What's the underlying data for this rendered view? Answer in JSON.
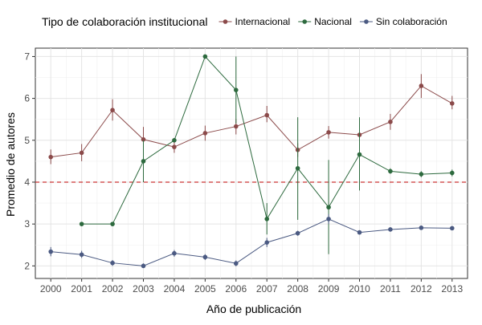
{
  "chart_data": {
    "type": "line",
    "legend_title": "Tipo de colaboración institucional",
    "legend_position": "top",
    "xlabel": "Año de publicación",
    "ylabel": "Promedio de autores",
    "x": [
      2000,
      2001,
      2002,
      2003,
      2004,
      2005,
      2006,
      2007,
      2008,
      2009,
      2010,
      2011,
      2012,
      2013
    ],
    "ylim": [
      1.7,
      7.2
    ],
    "yticks": [
      2,
      3,
      4,
      5,
      6,
      7
    ],
    "grid": true,
    "reference_line": {
      "y": 4,
      "color": "#cc3333",
      "style": "dashed"
    },
    "series": [
      {
        "name": "Internacional",
        "color": "#8b4a4a",
        "values": [
          4.6,
          4.7,
          5.72,
          5.02,
          4.84,
          5.17,
          5.33,
          5.6,
          4.77,
          5.19,
          5.13,
          5.44,
          6.3,
          5.88
        ],
        "err_low": [
          4.43,
          4.5,
          5.47,
          4.72,
          4.7,
          4.99,
          5.14,
          5.43,
          4.6,
          5.04,
          4.98,
          5.25,
          6.01,
          5.74
        ],
        "err_high": [
          4.78,
          4.91,
          5.98,
          5.32,
          4.97,
          5.35,
          5.51,
          5.82,
          4.93,
          5.34,
          5.27,
          5.63,
          6.58,
          6.06
        ]
      },
      {
        "name": "Nacional",
        "color": "#2d6a3e",
        "values": [
          null,
          3.0,
          3.0,
          4.5,
          5.0,
          7.0,
          6.2,
          3.12,
          4.33,
          3.4,
          4.66,
          4.26,
          4.19,
          4.22
        ],
        "err_low": [
          null,
          3.0,
          3.0,
          4.0,
          5.0,
          7.0,
          5.4,
          2.75,
          3.1,
          2.28,
          3.8,
          4.2,
          4.12,
          4.14
        ],
        "err_high": [
          null,
          3.0,
          3.0,
          5.0,
          5.0,
          7.0,
          7.0,
          3.5,
          5.55,
          4.53,
          5.55,
          4.33,
          4.26,
          4.3
        ]
      },
      {
        "name": "Sin colaboración",
        "color": "#4b5a82",
        "values": [
          2.34,
          2.27,
          2.07,
          2.0,
          2.3,
          2.21,
          2.06,
          2.56,
          2.78,
          3.12,
          2.8,
          2.87,
          2.91,
          2.9
        ],
        "err_low": [
          2.23,
          2.19,
          2.0,
          1.95,
          2.22,
          2.14,
          1.99,
          2.45,
          2.72,
          3.0,
          2.75,
          2.82,
          2.86,
          2.86
        ],
        "err_high": [
          2.45,
          2.36,
          2.14,
          2.06,
          2.38,
          2.28,
          2.13,
          2.67,
          2.84,
          3.24,
          2.85,
          2.92,
          2.96,
          2.95
        ]
      }
    ]
  }
}
